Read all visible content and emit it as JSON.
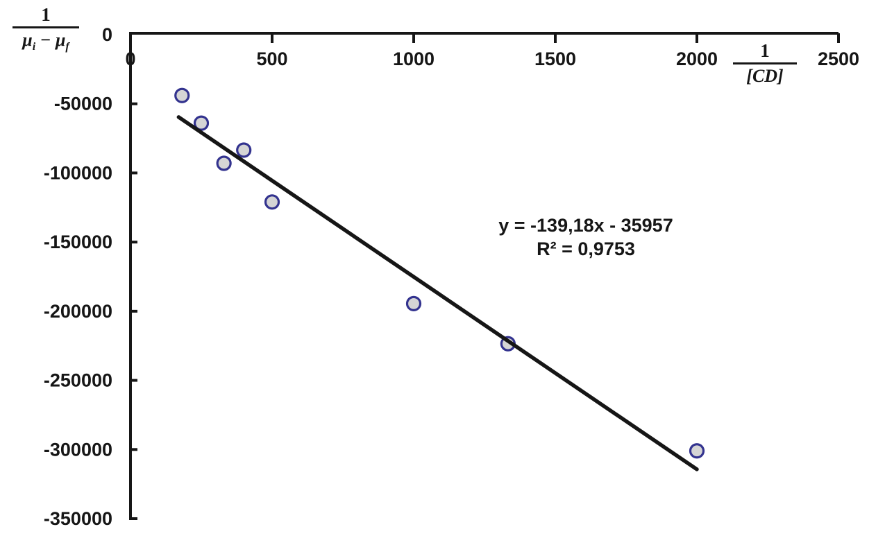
{
  "colors": {
    "background": "#ffffff",
    "axis": "#161616",
    "text": "#161616",
    "marker_fill": "#d5d5d5",
    "marker_stroke": "#33338f",
    "trendline": "#161616"
  },
  "chart_data": {
    "type": "scatter",
    "title": "",
    "x": [
      182,
      250,
      330,
      400,
      500,
      1000,
      1333,
      2000
    ],
    "y": [
      -44000,
      -64000,
      -93000,
      -83500,
      -121000,
      -194500,
      -223500,
      -301000
    ],
    "x_ticks": [
      0,
      500,
      1000,
      1500,
      2000,
      2500
    ],
    "x_tick_labels": [
      "0",
      "500",
      "1000",
      "1500",
      "2000",
      "2500"
    ],
    "y_ticks": [
      0,
      -50000,
      -100000,
      -150000,
      -200000,
      -250000,
      -300000,
      -350000
    ],
    "y_tick_labels": [
      "0",
      "-50000",
      "-100000",
      "-150000",
      "-200000",
      "-250000",
      "-300000",
      "-350000"
    ],
    "xlim": [
      0,
      2500
    ],
    "ylim": [
      -350000,
      0
    ],
    "grid": false,
    "legend": null,
    "x_axis_title": {
      "numerator": "1",
      "denominator": "[CD]"
    },
    "y_axis_title": {
      "numerator": "1",
      "mu1": "μ",
      "sub1": "i",
      "operator": "−",
      "mu2": "μ",
      "sub2": "f"
    },
    "trendline": {
      "slope": -139.18,
      "intercept": -35957,
      "x_start": 170,
      "x_end": 2000,
      "equation_label": "y = -139,18x - 35957",
      "r2_label": "R² = 0,9753"
    }
  }
}
